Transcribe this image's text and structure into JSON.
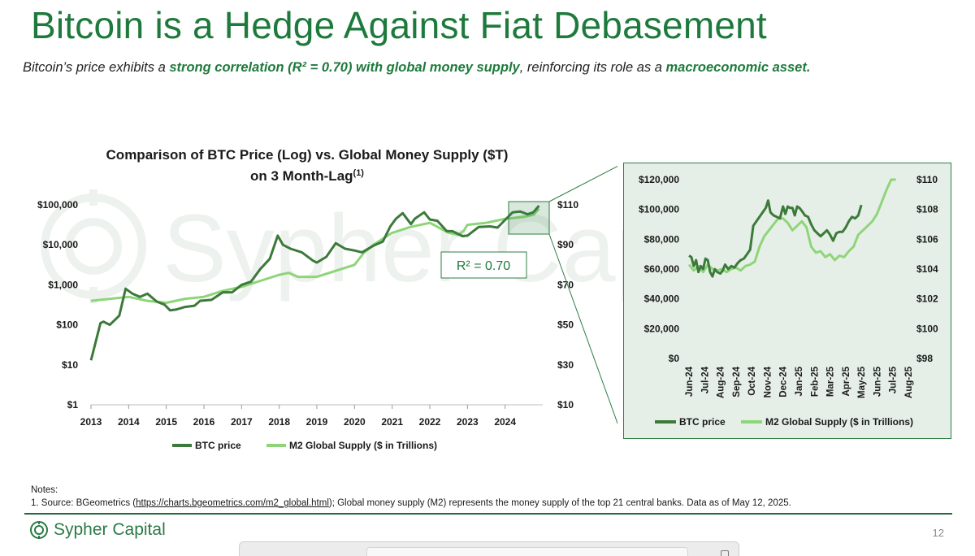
{
  "header": {
    "title": "Bitcoin is a Hedge Against Fiat Debasement",
    "subtitle_parts": [
      "Bitcoin’s price exhibits a ",
      "strong correlation (R² = 0.70) with global money supply",
      ", reinforcing its role as a ",
      "macroeconomic asset."
    ]
  },
  "watermark": {
    "text": "Sypher Capital"
  },
  "chart_data": [
    {
      "type": "line",
      "title": "Comparison of BTC Price (Log) vs. Global Money Supply ($T)",
      "title_line2": "on 3 Month-Lag",
      "title_superscript": "(1)",
      "x_tick_labels": [
        "2013",
        "2014",
        "2015",
        "2016",
        "2017",
        "2018",
        "2019",
        "2020",
        "2021",
        "2022",
        "2023",
        "2024"
      ],
      "y_left_scale": "log",
      "y_left_ticks": [
        1,
        10,
        100,
        1000,
        10000,
        100000
      ],
      "y_left_tick_labels": [
        "$1",
        "$10",
        "$100",
        "$1,000",
        "$10,000",
        "$100,000"
      ],
      "y_right_ticks": [
        10,
        30,
        50,
        70,
        90,
        110
      ],
      "y_right_tick_labels": [
        "$10",
        "$30",
        "$50",
        "$70",
        "$90",
        "$110"
      ],
      "annotation": "R² = 0.70",
      "series": [
        {
          "name": "BTC price",
          "color": "#3b7a3b",
          "axis": "left",
          "x": [
            2013.0,
            2013.1,
            2013.25,
            2013.33,
            2013.5,
            2013.75,
            2013.92,
            2014.1,
            2014.3,
            2014.5,
            2014.75,
            2014.95,
            2015.1,
            2015.25,
            2015.5,
            2015.75,
            2015.9,
            2016.2,
            2016.5,
            2016.75,
            2017.0,
            2017.25,
            2017.5,
            2017.75,
            2017.96,
            2018.1,
            2018.3,
            2018.6,
            2018.9,
            2019.0,
            2019.25,
            2019.5,
            2019.75,
            2020.0,
            2020.2,
            2020.5,
            2020.75,
            2020.95,
            2021.1,
            2021.28,
            2021.5,
            2021.6,
            2021.85,
            2022.0,
            2022.2,
            2022.45,
            2022.6,
            2022.87,
            2023.0,
            2023.3,
            2023.6,
            2023.8,
            2024.0,
            2024.2,
            2024.4,
            2024.6,
            2024.75,
            2024.9
          ],
          "values": [
            13,
            30,
            110,
            120,
            100,
            170,
            800,
            600,
            500,
            600,
            380,
            320,
            230,
            240,
            280,
            300,
            400,
            420,
            650,
            650,
            1000,
            1200,
            2500,
            4500,
            17000,
            10000,
            8000,
            6500,
            4000,
            3600,
            5000,
            11000,
            8000,
            7200,
            6500,
            9500,
            12000,
            29000,
            45000,
            62000,
            33000,
            45000,
            65000,
            43000,
            40000,
            22000,
            22000,
            16500,
            17000,
            28000,
            29000,
            27000,
            42000,
            65000,
            68000,
            58000,
            65000,
            95000
          ]
        },
        {
          "name": "M2 Global Supply ($ in Trillions)",
          "color": "#8ed57a",
          "axis": "right",
          "x": [
            2013.0,
            2013.5,
            2014.0,
            2014.5,
            2015.0,
            2015.5,
            2016.0,
            2016.5,
            2017.0,
            2017.5,
            2018.0,
            2018.25,
            2018.5,
            2019.0,
            2019.5,
            2020.0,
            2020.25,
            2020.5,
            2021.0,
            2021.5,
            2022.0,
            2022.3,
            2022.5,
            2022.75,
            2022.9,
            2023.0,
            2023.5,
            2024.0,
            2024.5,
            2024.75,
            2024.9
          ],
          "values": [
            62,
            63,
            64,
            62,
            61,
            63,
            64,
            67,
            69,
            72,
            75,
            76,
            74,
            74,
            77,
            80,
            86,
            90,
            96,
            99,
            101,
            98,
            96,
            95,
            97,
            100,
            101,
            103,
            104,
            105,
            108
          ]
        }
      ]
    },
    {
      "type": "line",
      "title": "",
      "x_tick_labels": [
        "Jun-24",
        "Jul-24",
        "Aug-24",
        "Sep-24",
        "Oct-24",
        "Nov-24",
        "Dec-24",
        "Jan-25",
        "Feb-25",
        "Mar-25",
        "Apr-25",
        "May-25",
        "Jun-25",
        "Jul-25",
        "Aug-25"
      ],
      "y_left_ticks": [
        0,
        20000,
        40000,
        60000,
        80000,
        100000,
        120000
      ],
      "y_left_tick_labels": [
        "$0",
        "$20,000",
        "$40,000",
        "$60,000",
        "$80,000",
        "$100,000",
        "$120,000"
      ],
      "y_right_ticks": [
        98,
        100,
        102,
        104,
        106,
        108,
        110
      ],
      "y_right_tick_labels": [
        "$98",
        "$100",
        "$102",
        "$104",
        "$106",
        "$108",
        "$110"
      ],
      "series": [
        {
          "name": "BTC price",
          "color": "#3b7a3b",
          "axis": "left",
          "x": [
            0.0,
            0.15,
            0.3,
            0.45,
            0.6,
            0.75,
            0.9,
            1.05,
            1.2,
            1.35,
            1.5,
            1.65,
            1.8,
            2.0,
            2.15,
            2.3,
            2.5,
            2.7,
            2.9,
            3.1,
            3.3,
            3.5,
            3.7,
            3.9,
            4.1,
            4.3,
            4.5,
            4.7,
            4.9,
            5.05,
            5.2,
            5.4,
            5.6,
            5.8,
            6.0,
            6.15,
            6.3,
            6.45,
            6.6,
            6.75,
            6.9,
            7.05,
            7.2,
            7.4,
            7.6,
            7.8,
            8.0,
            8.2,
            8.4,
            8.6,
            8.8,
            9.0,
            9.2,
            9.4,
            9.6,
            9.8,
            10.0,
            10.2,
            10.4,
            10.6,
            10.8,
            11.0
          ],
          "values": [
            69000,
            68000,
            62000,
            66000,
            58000,
            62000,
            60000,
            67000,
            66000,
            58000,
            55000,
            60000,
            58000,
            57000,
            59000,
            63000,
            60000,
            62000,
            61000,
            64000,
            66000,
            67000,
            70000,
            73000,
            89000,
            92000,
            95000,
            98000,
            101000,
            106000,
            98000,
            96000,
            95000,
            94000,
            102000,
            97000,
            102000,
            101000,
            101000,
            96000,
            102000,
            101000,
            99000,
            96000,
            95000,
            90000,
            86000,
            84000,
            82000,
            84000,
            86000,
            83000,
            79000,
            84000,
            85000,
            85000,
            88000,
            92000,
            95000,
            94000,
            96000,
            103000
          ]
        },
        {
          "name": "M2 Global Supply ($ in Trillions)",
          "color": "#8ed57a",
          "axis": "right",
          "x": [
            0.0,
            0.3,
            0.6,
            0.9,
            1.2,
            1.5,
            1.8,
            2.1,
            2.4,
            2.7,
            3.0,
            3.3,
            3.6,
            3.9,
            4.2,
            4.5,
            4.8,
            5.1,
            5.4,
            5.7,
            6.0,
            6.3,
            6.6,
            6.9,
            7.2,
            7.5,
            7.8,
            8.1,
            8.4,
            8.7,
            9.0,
            9.3,
            9.6,
            9.9,
            10.2,
            10.5,
            10.8,
            11.1,
            11.4,
            11.7,
            12.0,
            12.3,
            12.6,
            12.9,
            13.2
          ],
          "values": [
            104.3,
            103.9,
            104.2,
            103.8,
            104.3,
            104.0,
            103.9,
            104.0,
            103.8,
            104.0,
            104.1,
            103.9,
            104.2,
            104.3,
            104.5,
            105.5,
            106.2,
            106.6,
            107.0,
            107.4,
            107.4,
            107.1,
            106.6,
            106.9,
            107.2,
            106.8,
            105.5,
            105.1,
            105.2,
            104.8,
            105.0,
            104.6,
            104.9,
            104.8,
            105.2,
            105.5,
            106.3,
            106.6,
            106.9,
            107.2,
            107.7,
            108.5,
            109.3,
            110.0,
            111.0
          ]
        }
      ]
    }
  ],
  "notes": {
    "heading": "Notes:",
    "line_prefix": "1. Source: BGeometrics (",
    "link": "https://charts.bgeometrics.com/m2_global.html",
    "line_suffix": "); Global money supply (M2) represents the money supply of the top 21 central banks. Data as of May 12, 2025."
  },
  "footer": {
    "brand": "Sypher Capital",
    "page_number": "12"
  }
}
